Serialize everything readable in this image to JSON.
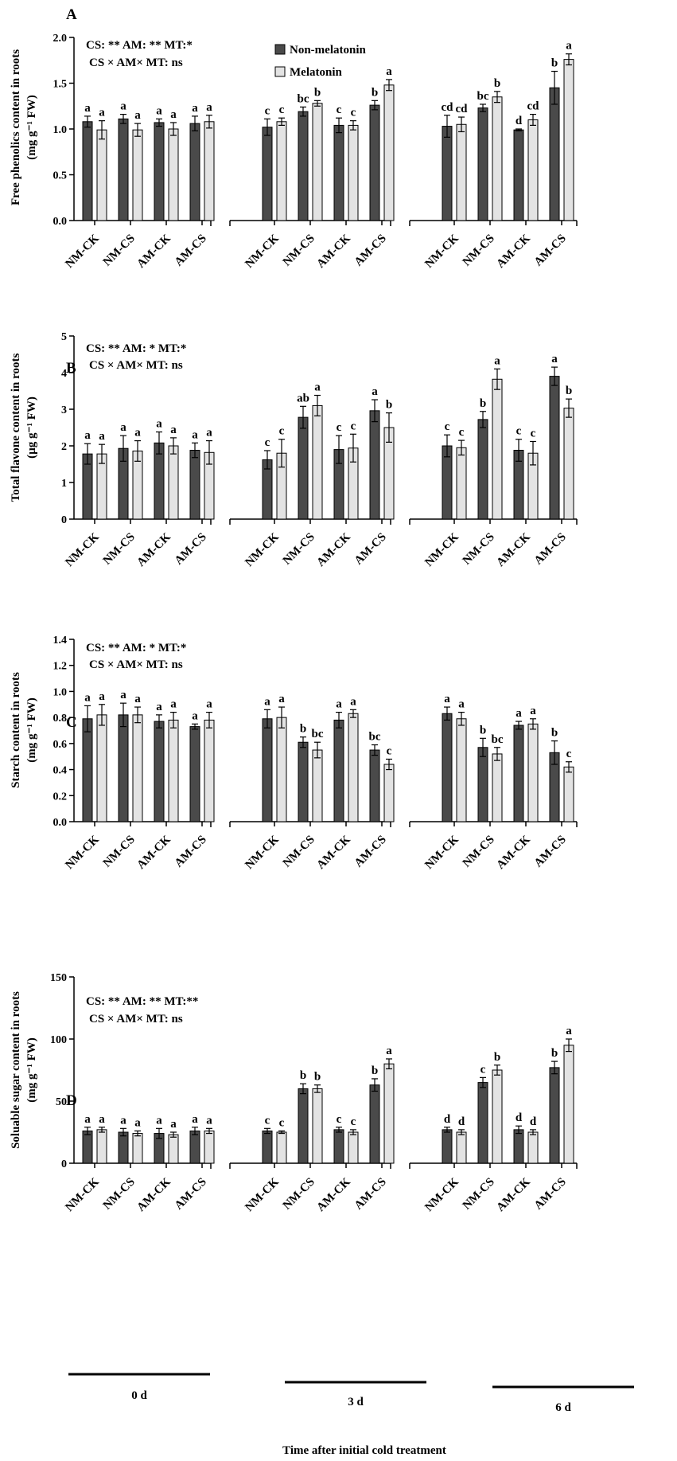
{
  "figure": {
    "xlabel": "Time after initial cold treatment",
    "legend": [
      {
        "name": "Non-melatonin",
        "color": "#4a4a4a"
      },
      {
        "name": "Melatonin",
        "color": "#e3e3e3"
      }
    ],
    "groups": [
      "0 d",
      "3 d",
      "6 d"
    ],
    "treatments": [
      "NM-CK",
      "NM-CS",
      "AM-CK",
      "AM-CS"
    ]
  },
  "chart_data": [
    {
      "type": "bar",
      "panel": "A",
      "ylabel_line1": "Free phenolics content in roots",
      "ylabel_line2": "(mg g⁻¹ FW)",
      "ylim": [
        0,
        2.0
      ],
      "yticks": [
        "0.0",
        "0.5",
        "1.0",
        "1.5",
        "2.0"
      ],
      "stats_line1": "CS: **  AM: ** MT:*",
      "stats_line2": "CS ×  AM×  MT: ns",
      "categories": [
        "0 d NM-CK",
        "0 d NM-CS",
        "0 d AM-CK",
        "0 d AM-CS",
        "3 d NM-CK",
        "3 d NM-CS",
        "3 d AM-CK",
        "3 d AM-CS",
        "6 d NM-CK",
        "6 d NM-CS",
        "6 d AM-CK",
        "6 d AM-CS"
      ],
      "series": [
        {
          "name": "Non-melatonin",
          "values": [
            1.08,
            1.11,
            1.07,
            1.06,
            1.02,
            1.19,
            1.04,
            1.26,
            1.03,
            1.23,
            0.99,
            1.45
          ],
          "errors": [
            0.06,
            0.05,
            0.04,
            0.08,
            0.09,
            0.05,
            0.08,
            0.05,
            0.12,
            0.04,
            0.01,
            0.18
          ],
          "letters": [
            "a",
            "a",
            "a",
            "a",
            "c",
            "bc",
            "c",
            "b",
            "cd",
            "bc",
            "d",
            "b"
          ]
        },
        {
          "name": "Melatonin",
          "values": [
            0.99,
            0.99,
            1.0,
            1.08,
            1.08,
            1.28,
            1.04,
            1.48,
            1.05,
            1.35,
            1.1,
            1.76
          ],
          "errors": [
            0.1,
            0.07,
            0.07,
            0.07,
            0.04,
            0.03,
            0.05,
            0.06,
            0.08,
            0.06,
            0.06,
            0.06
          ],
          "letters": [
            "a",
            "a",
            "a",
            "a",
            "c",
            "b",
            "c",
            "a",
            "cd",
            "b",
            "cd",
            "a"
          ]
        }
      ]
    },
    {
      "type": "bar",
      "panel": "B",
      "ylabel_line1": "Total flavone content  in roots",
      "ylabel_line2": "(µg g⁻¹ FW)",
      "ylim": [
        0,
        5
      ],
      "yticks": [
        "0",
        "1",
        "2",
        "3",
        "4",
        "5"
      ],
      "stats_line1": "CS: **  AM: * MT:*",
      "stats_line2": "CS ×  AM×  MT: ns",
      "categories": [
        "0 d NM-CK",
        "0 d NM-CS",
        "0 d AM-CK",
        "0 d AM-CS",
        "3 d NM-CK",
        "3 d NM-CS",
        "3 d AM-CK",
        "3 d AM-CS",
        "6 d NM-CK",
        "6 d NM-CS",
        "6 d AM-CK",
        "6 d AM-CS"
      ],
      "series": [
        {
          "name": "Non-melatonin",
          "values": [
            1.78,
            1.93,
            2.08,
            1.88,
            1.62,
            2.78,
            1.9,
            2.96,
            2.0,
            2.72,
            1.88,
            3.9
          ],
          "errors": [
            0.28,
            0.35,
            0.3,
            0.2,
            0.25,
            0.3,
            0.38,
            0.3,
            0.3,
            0.22,
            0.3,
            0.25
          ],
          "letters": [
            "a",
            "a",
            "a",
            "a",
            "c",
            "ab",
            "c",
            "a",
            "c",
            "b",
            "c",
            "a"
          ]
        },
        {
          "name": "Melatonin",
          "values": [
            1.78,
            1.86,
            2.0,
            1.82,
            1.8,
            3.1,
            1.94,
            2.5,
            1.95,
            3.82,
            1.8,
            3.03
          ],
          "errors": [
            0.26,
            0.28,
            0.22,
            0.32,
            0.38,
            0.28,
            0.38,
            0.4,
            0.2,
            0.28,
            0.32,
            0.25
          ],
          "letters": [
            "a",
            "a",
            "a",
            "a",
            "c",
            "a",
            "c",
            "b",
            "c",
            "a",
            "c",
            "b"
          ]
        }
      ]
    },
    {
      "type": "bar",
      "panel": "C",
      "ylabel_line1": "Starch content in roots",
      "ylabel_line2": "(mg g⁻¹ FW)",
      "ylim": [
        0,
        1.4
      ],
      "yticks": [
        "0.0",
        "0.2",
        "0.4",
        "0.6",
        "0.8",
        "1.0",
        "1.2",
        "1.4"
      ],
      "stats_line1": "CS: **  AM: * MT:*",
      "stats_line2": "CS ×  AM×  MT: ns",
      "categories": [
        "0 d NM-CK",
        "0 d NM-CS",
        "0 d AM-CK",
        "0 d AM-CS",
        "3 d NM-CK",
        "3 d NM-CS",
        "3 d AM-CK",
        "3 d AM-CS",
        "6 d NM-CK",
        "6 d NM-CS",
        "6 d AM-CK",
        "6 d AM-CS"
      ],
      "series": [
        {
          "name": "Non-melatonin",
          "values": [
            0.79,
            0.82,
            0.77,
            0.73,
            0.79,
            0.61,
            0.78,
            0.55,
            0.83,
            0.57,
            0.74,
            0.53
          ],
          "errors": [
            0.1,
            0.09,
            0.05,
            0.02,
            0.07,
            0.04,
            0.06,
            0.04,
            0.05,
            0.07,
            0.03,
            0.09
          ],
          "letters": [
            "a",
            "a",
            "a",
            "a",
            "a",
            "b",
            "a",
            "bc",
            "a",
            "b",
            "a",
            "b"
          ]
        },
        {
          "name": "Melatonin",
          "values": [
            0.82,
            0.82,
            0.78,
            0.78,
            0.8,
            0.55,
            0.83,
            0.44,
            0.79,
            0.52,
            0.75,
            0.42
          ],
          "errors": [
            0.08,
            0.06,
            0.06,
            0.06,
            0.08,
            0.06,
            0.03,
            0.04,
            0.05,
            0.05,
            0.04,
            0.04
          ],
          "letters": [
            "a",
            "a",
            "a",
            "a",
            "a",
            "bc",
            "a",
            "c",
            "a",
            "bc",
            "a",
            "c"
          ]
        }
      ]
    },
    {
      "type": "bar",
      "panel": "D",
      "ylabel_line1": "Soluable sugar content in roots",
      "ylabel_line2": "(mg g⁻¹ FW)",
      "ylim": [
        0,
        150
      ],
      "yticks": [
        "0",
        "50",
        "100",
        "150"
      ],
      "stats_line1": "CS: **  AM: ** MT:**",
      "stats_line2": "CS ×  AM×  MT: ns",
      "categories": [
        "0 d NM-CK",
        "0 d NM-CS",
        "0 d AM-CK",
        "0 d AM-CS",
        "3 d NM-CK",
        "3 d NM-CS",
        "3 d AM-CK",
        "3 d AM-CS",
        "6 d NM-CK",
        "6 d NM-CS",
        "6 d AM-CK",
        "6 d AM-CS"
      ],
      "series": [
        {
          "name": "Non-melatonin",
          "values": [
            26,
            25,
            24,
            26,
            26,
            60,
            27,
            63,
            27,
            65,
            27,
            77
          ],
          "errors": [
            3,
            3,
            4,
            3,
            2,
            4,
            2,
            5,
            2,
            4,
            3,
            5
          ],
          "letters": [
            "a",
            "a",
            "a",
            "a",
            "c",
            "b",
            "c",
            "b",
            "d",
            "c",
            "d",
            "b"
          ]
        },
        {
          "name": "Melatonin",
          "values": [
            27,
            24,
            23,
            26,
            25,
            60,
            25,
            80,
            25,
            75,
            25,
            95
          ],
          "errors": [
            2,
            2,
            2,
            2,
            1,
            3,
            2,
            4,
            2,
            4,
            2,
            5
          ],
          "letters": [
            "a",
            "a",
            "a",
            "a",
            "c",
            "b",
            "c",
            "a",
            "d",
            "b",
            "d",
            "a"
          ]
        }
      ]
    }
  ]
}
